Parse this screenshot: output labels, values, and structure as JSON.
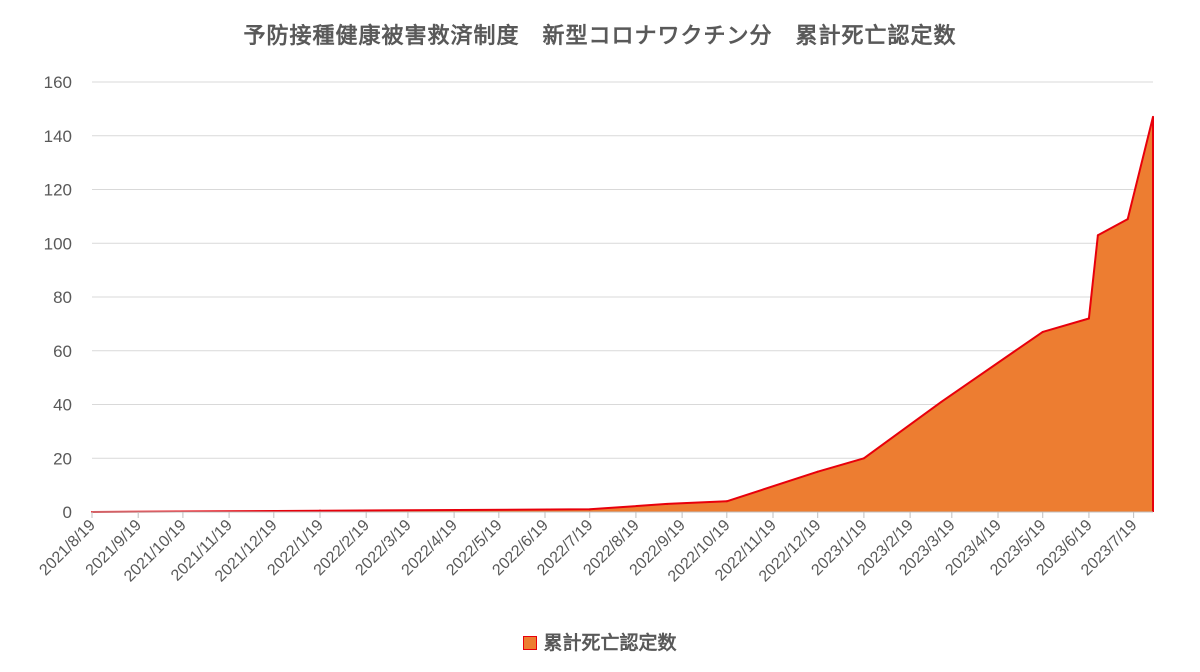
{
  "chart_data": {
    "type": "area",
    "title": "予防接種健康被害救済制度　新型コロナワクチン分　累計死亡認定数",
    "xlabel": "",
    "ylabel": "",
    "ylim": [
      0,
      160
    ],
    "yticks": [
      0,
      20,
      40,
      60,
      80,
      100,
      120,
      140,
      160
    ],
    "xticks": [
      "2021/8/19",
      "2021/9/19",
      "2021/10/19",
      "2021/11/19",
      "2021/12/19",
      "2022/1/19",
      "2022/2/19",
      "2022/3/19",
      "2022/4/19",
      "2022/5/19",
      "2022/6/19",
      "2022/7/19",
      "2022/8/19",
      "2022/9/19",
      "2022/10/19",
      "2022/11/19",
      "2022/12/19",
      "2023/1/19",
      "2023/2/19",
      "2023/3/19",
      "2023/4/19",
      "2023/5/19",
      "2023/6/19",
      "2023/7/19"
    ],
    "x_start": "2021/8/19",
    "x_end": "2023/8/1",
    "grid": true,
    "legend_position": "bottom",
    "series": [
      {
        "name": "累計死亡認定数",
        "fill_color": "#ed7d31",
        "line_color": "#e8000b",
        "points": [
          [
            "2021/8/19",
            0
          ],
          [
            "2022/1/19",
            0.5
          ],
          [
            "2022/7/19",
            1
          ],
          [
            "2022/9/9",
            3
          ],
          [
            "2022/10/19",
            4
          ],
          [
            "2022/12/19",
            15
          ],
          [
            "2023/1/19",
            20
          ],
          [
            "2023/3/12",
            41
          ],
          [
            "2023/5/19",
            67
          ],
          [
            "2023/6/19",
            72
          ],
          [
            "2023/6/25",
            103
          ],
          [
            "2023/7/15",
            109
          ],
          [
            "2023/8/1",
            147
          ]
        ]
      }
    ]
  }
}
